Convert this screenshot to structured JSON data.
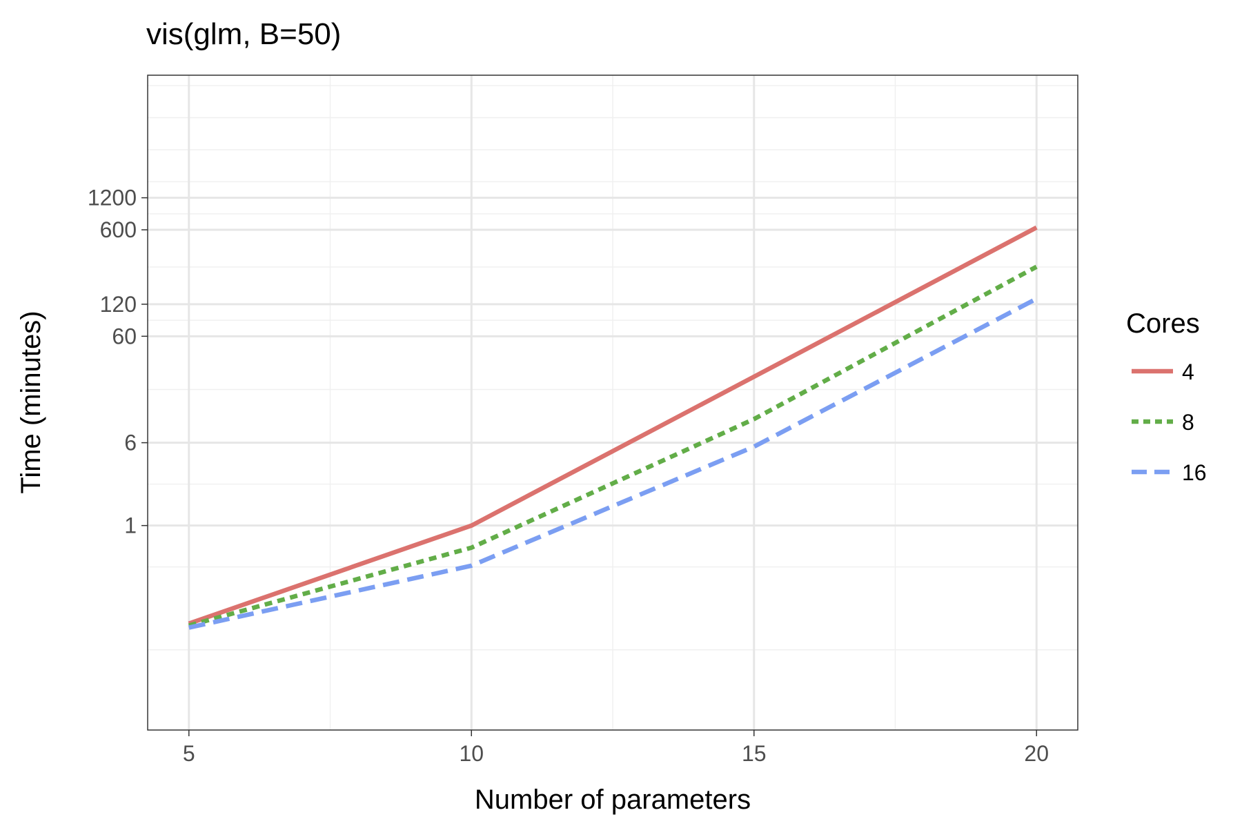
{
  "chart_data": {
    "type": "line",
    "title": "vis(glm, B=50)",
    "xlabel": "Number of parameters",
    "ylabel": "Time (minutes)",
    "x": [
      5,
      10,
      15,
      20
    ],
    "xlim": [
      4.27,
      20.73
    ],
    "ylim": [
      0.012,
      17000
    ],
    "yscale": "log",
    "x_ticks": [
      5,
      10,
      15,
      20
    ],
    "x_tick_labels": [
      "5",
      "10",
      "15",
      "20"
    ],
    "y_ticks": [
      1,
      6,
      60,
      120,
      600,
      1200
    ],
    "y_tick_labels": [
      "1",
      "6",
      "60",
      "120",
      "600",
      "1200"
    ],
    "grid": true,
    "legend": {
      "title": "Cores",
      "placement": "right"
    },
    "series": [
      {
        "name": "4",
        "color": "#db726e",
        "dash": "solid",
        "values": [
          0.12,
          1.0,
          25,
          630
        ]
      },
      {
        "name": "8",
        "color": "#62ad48",
        "dash": "dotted",
        "values": [
          0.115,
          0.62,
          10,
          270
        ]
      },
      {
        "name": "16",
        "color": "#7b9ef2",
        "dash": "dashed",
        "values": [
          0.11,
          0.42,
          5.5,
          135
        ]
      }
    ]
  }
}
